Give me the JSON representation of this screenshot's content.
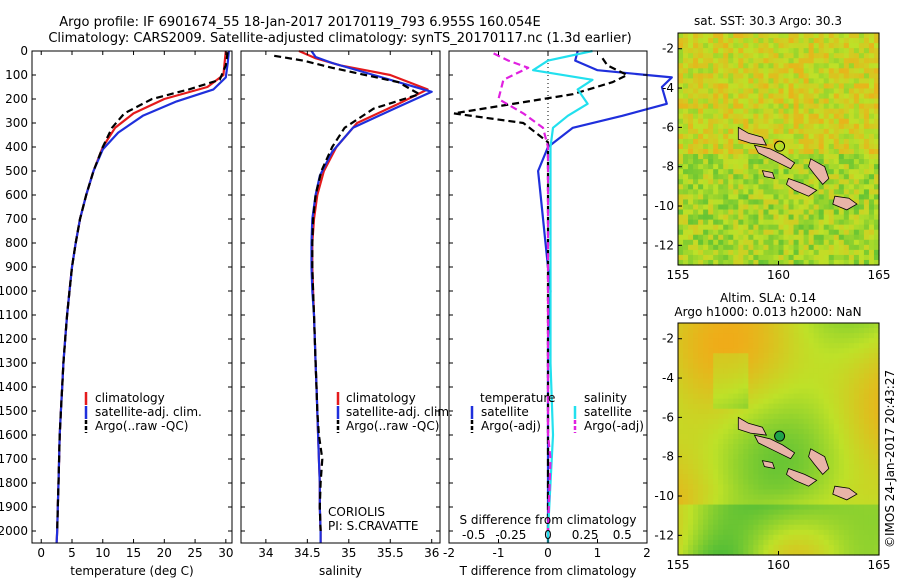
{
  "header": {
    "title_line1": "Argo profile: IF 6901674_55 18-Jan-2017 20170119_793 6.955S 160.054E",
    "title_line2": "Climatology: CARS2009. Satellite-adjusted climatology: synTS_20170117.nc (1.3d earlier)"
  },
  "watermark": "©IMOS 24-Jan-2017 20:43:27",
  "colors": {
    "climatology": "#e41a1c",
    "satellite": "#1f2fdc",
    "argo": "#000000",
    "sal_satellite": "#22e0ee",
    "sal_argo": "#e020e0",
    "land": "#e8b4a8",
    "argo_marker": "#1fa34a"
  },
  "chart_data": [
    {
      "id": "temperature",
      "type": "line",
      "xlabel": "temperature (deg C)",
      "ylabel": "",
      "xlim": [
        -1.5,
        31
      ],
      "ylim": [
        2050,
        0
      ],
      "xticks": [
        0,
        5,
        10,
        15,
        20,
        25,
        30
      ],
      "xtick_labels": [
        "0",
        "5",
        "10",
        "15",
        "20",
        "25",
        "30"
      ],
      "yticks": [
        0,
        100,
        200,
        300,
        400,
        500,
        600,
        700,
        800,
        900,
        1000,
        1100,
        1200,
        1300,
        1400,
        1500,
        1600,
        1700,
        1800,
        1900,
        2000
      ],
      "ytick_labels": [
        "0",
        "100",
        "200",
        "300",
        "400",
        "500",
        "600",
        "700",
        "800",
        "900",
        "1000",
        "1100",
        "1200",
        "1300",
        "1400",
        "1500",
        "1600",
        "1700",
        "1800",
        "1900",
        "2000"
      ],
      "legend": [
        "climatology",
        "satellite-adj. clim.",
        "Argo(..raw -QC)"
      ],
      "series": [
        {
          "name": "climatology",
          "color": "#e41a1c",
          "dash": false,
          "points": [
            [
              30,
              0
            ],
            [
              29.8,
              50
            ],
            [
              29.6,
              100
            ],
            [
              27,
              150
            ],
            [
              20,
              200
            ],
            [
              15,
              260
            ],
            [
              12,
              320
            ],
            [
              10,
              400
            ],
            [
              8.5,
              500
            ],
            [
              7.3,
              600
            ],
            [
              6.3,
              700
            ],
            [
              5.6,
              800
            ],
            [
              5,
              900
            ],
            [
              4.6,
              1000
            ],
            [
              4.2,
              1100
            ],
            [
              3.9,
              1200
            ],
            [
              3.6,
              1300
            ],
            [
              3.4,
              1400
            ],
            [
              3.2,
              1500
            ],
            [
              3,
              1600
            ],
            [
              2.9,
              1700
            ],
            [
              2.8,
              1800
            ],
            [
              2.7,
              1900
            ],
            [
              2.6,
              2000
            ],
            [
              2.5,
              2050
            ]
          ]
        },
        {
          "name": "satellite-adj. clim.",
          "color": "#1f2fdc",
          "dash": false,
          "points": [
            [
              30.5,
              0
            ],
            [
              30.3,
              50
            ],
            [
              30,
              110
            ],
            [
              28,
              160
            ],
            [
              22,
              210
            ],
            [
              16.5,
              270
            ],
            [
              12.5,
              340
            ],
            [
              10,
              410
            ],
            [
              8.5,
              500
            ],
            [
              7.3,
              600
            ],
            [
              6.3,
              700
            ],
            [
              5.6,
              800
            ],
            [
              5,
              900
            ],
            [
              4.6,
              1000
            ],
            [
              4.2,
              1100
            ],
            [
              3.9,
              1200
            ],
            [
              3.6,
              1300
            ],
            [
              3.4,
              1400
            ],
            [
              3.2,
              1500
            ],
            [
              3,
              1600
            ],
            [
              2.9,
              1700
            ],
            [
              2.8,
              1800
            ],
            [
              2.7,
              1900
            ],
            [
              2.6,
              2000
            ],
            [
              2.5,
              2050
            ]
          ]
        },
        {
          "name": "Argo(..raw -QC)",
          "color": "#000000",
          "dash": true,
          "points": [
            [
              30.3,
              5
            ],
            [
              30,
              60
            ],
            [
              29,
              120
            ],
            [
              24,
              160
            ],
            [
              18,
              200
            ],
            [
              13.5,
              260
            ],
            [
              11.5,
              320
            ],
            [
              10,
              400
            ],
            [
              8.5,
              500
            ],
            [
              7.3,
              600
            ],
            [
              6.3,
              700
            ],
            [
              5.6,
              800
            ],
            [
              5,
              900
            ],
            [
              4.6,
              1000
            ],
            [
              4.2,
              1100
            ],
            [
              3.9,
              1200
            ],
            [
              3.6,
              1300
            ],
            [
              3.4,
              1400
            ],
            [
              3.2,
              1500
            ],
            [
              3,
              1600
            ],
            [
              2.9,
              1700
            ],
            [
              2.8,
              1800
            ],
            [
              2.7,
              1900
            ],
            [
              2.6,
              2000
            ]
          ]
        }
      ]
    },
    {
      "id": "salinity",
      "type": "line",
      "xlabel": "salinity",
      "ylabel": "",
      "xlim": [
        33.7,
        36.1
      ],
      "ylim": [
        2050,
        0
      ],
      "xticks": [
        34,
        34.5,
        35,
        35.5,
        36
      ],
      "xtick_labels": [
        "34",
        "34.5",
        "35",
        "35.5",
        "36"
      ],
      "legend": [
        "climatology",
        "satellite-adj. clim.",
        "Argo(..raw -QC)"
      ],
      "annotation": [
        "CORIOLIS",
        "PI: S.CRAVATTE"
      ],
      "series": [
        {
          "name": "climatology",
          "color": "#e41a1c",
          "dash": false,
          "points": [
            [
              34.4,
              0
            ],
            [
              34.6,
              30
            ],
            [
              34.9,
              60
            ],
            [
              35.5,
              100
            ],
            [
              35.95,
              160
            ],
            [
              35.6,
              220
            ],
            [
              35.1,
              300
            ],
            [
              34.85,
              400
            ],
            [
              34.7,
              500
            ],
            [
              34.62,
              600
            ],
            [
              34.58,
              700
            ],
            [
              34.56,
              800
            ],
            [
              34.56,
              900
            ],
            [
              34.57,
              1000
            ],
            [
              34.58,
              1100
            ],
            [
              34.59,
              1200
            ],
            [
              34.6,
              1300
            ],
            [
              34.61,
              1400
            ],
            [
              34.62,
              1500
            ],
            [
              34.63,
              1600
            ],
            [
              34.64,
              1700
            ],
            [
              34.65,
              1800
            ],
            [
              34.65,
              1900
            ],
            [
              34.66,
              2000
            ],
            [
              34.66,
              2050
            ]
          ]
        },
        {
          "name": "satellite-adj. clim.",
          "color": "#1f2fdc",
          "dash": false,
          "points": [
            [
              34.55,
              0
            ],
            [
              34.6,
              25
            ],
            [
              34.8,
              50
            ],
            [
              35.3,
              100
            ],
            [
              36,
              170
            ],
            [
              35.55,
              240
            ],
            [
              35.05,
              320
            ],
            [
              34.8,
              420
            ],
            [
              34.65,
              520
            ],
            [
              34.6,
              600
            ],
            [
              34.56,
              700
            ],
            [
              34.55,
              800
            ],
            [
              34.55,
              900
            ],
            [
              34.56,
              1000
            ],
            [
              34.58,
              1100
            ],
            [
              34.59,
              1200
            ],
            [
              34.6,
              1300
            ],
            [
              34.61,
              1400
            ],
            [
              34.62,
              1500
            ],
            [
              34.63,
              1600
            ],
            [
              34.64,
              1700
            ],
            [
              34.65,
              1800
            ],
            [
              34.65,
              1900
            ],
            [
              34.66,
              2000
            ],
            [
              34.66,
              2050
            ]
          ]
        },
        {
          "name": "Argo(..raw -QC)",
          "color": "#000000",
          "dash": true,
          "points": [
            [
              34.1,
              20
            ],
            [
              34.45,
              40
            ],
            [
              34.8,
              70
            ],
            [
              35.6,
              130
            ],
            [
              35.85,
              180
            ],
            [
              35.3,
              240
            ],
            [
              34.95,
              320
            ],
            [
              34.8,
              400
            ],
            [
              34.67,
              500
            ],
            [
              34.6,
              600
            ],
            [
              34.57,
              700
            ],
            [
              34.56,
              800
            ],
            [
              34.56,
              900
            ],
            [
              34.57,
              1000
            ],
            [
              34.58,
              1100
            ],
            [
              34.59,
              1200
            ],
            [
              34.6,
              1300
            ],
            [
              34.61,
              1400
            ],
            [
              34.62,
              1500
            ],
            [
              34.64,
              1600
            ],
            [
              34.68,
              1700
            ],
            [
              34.66,
              1800
            ],
            [
              34.65,
              1900
            ],
            [
              34.66,
              2000
            ]
          ]
        }
      ]
    },
    {
      "id": "difference",
      "type": "line",
      "xlabel": "T difference from climatology",
      "xlabel_top": "S difference from climatology",
      "xlim": [
        -2,
        2
      ],
      "ylim": [
        2050,
        0
      ],
      "xticks": [
        -2,
        -1,
        0,
        1,
        2
      ],
      "xtick_labels": [
        "-2",
        "-1",
        "0",
        "1",
        "2"
      ],
      "sticks": [
        -1.5,
        -0.75,
        0,
        0.75,
        1.5
      ],
      "stick_labels": [
        "-0.5",
        "-0.25",
        "0",
        "0.25",
        "0.5"
      ],
      "legend_temperature_title": "temperature",
      "legend_salinity_title": "salinity",
      "legend_satellite": "satellite",
      "legend_argo": "Argo(-adj)",
      "series": [
        {
          "name": "T satellite",
          "color": "#1f2fdc",
          "dash": false,
          "points": [
            [
              0.6,
              0
            ],
            [
              0.55,
              40
            ],
            [
              1,
              80
            ],
            [
              2.5,
              110
            ],
            [
              2.3,
              150
            ],
            [
              2.4,
              220
            ],
            [
              1.5,
              270
            ],
            [
              0.5,
              320
            ],
            [
              0,
              400
            ],
            [
              -0.2,
              500
            ],
            [
              -0.15,
              600
            ],
            [
              -0.05,
              800
            ],
            [
              0.05,
              1000
            ],
            [
              0,
              1200
            ],
            [
              0,
              1500
            ],
            [
              0,
              1800
            ],
            [
              0,
              2000
            ],
            [
              0,
              2050
            ]
          ]
        },
        {
          "name": "T Argo(-adj)",
          "color": "#000000",
          "dash": true,
          "points": [
            [
              1.1,
              30
            ],
            [
              1.2,
              60
            ],
            [
              1.6,
              100
            ],
            [
              1.3,
              130
            ],
            [
              0.5,
              180
            ],
            [
              -1,
              230
            ],
            [
              -1.9,
              260
            ],
            [
              -0.5,
              300
            ],
            [
              0,
              380
            ],
            [
              0,
              2000
            ]
          ]
        },
        {
          "name": "S satellite",
          "color": "#22e0ee",
          "dash": false,
          "points": [
            [
              0.9,
              0
            ],
            [
              0,
              40
            ],
            [
              -0.3,
              80
            ],
            [
              0.9,
              120
            ],
            [
              0.6,
              160
            ],
            [
              0.8,
              220
            ],
            [
              0.4,
              270
            ],
            [
              0.1,
              320
            ],
            [
              0.05,
              400
            ],
            [
              0.05,
              700
            ],
            [
              0.05,
              1000
            ],
            [
              0.05,
              1300
            ],
            [
              0.1,
              1600
            ],
            [
              0.05,
              1800
            ],
            [
              0,
              2000
            ],
            [
              0,
              2050
            ]
          ]
        },
        {
          "name": "S Argo(-adj)",
          "color": "#e020e0",
          "dash": true,
          "points": [
            [
              -1.1,
              10
            ],
            [
              -0.8,
              40
            ],
            [
              -0.4,
              70
            ],
            [
              -0.9,
              120
            ],
            [
              -1,
              200
            ],
            [
              -0.5,
              260
            ],
            [
              -0.1,
              320
            ],
            [
              0,
              400
            ],
            [
              0,
              1600
            ],
            [
              0.05,
              1700
            ],
            [
              0,
              2000
            ]
          ]
        }
      ]
    },
    {
      "id": "sst_map",
      "type": "heatmap",
      "title": "sat. SST: 30.3 Argo: 30.3",
      "xlim": [
        155,
        165
      ],
      "ylim": [
        -13,
        -1.2
      ],
      "xticks": [
        155,
        160,
        165
      ],
      "xtick_labels": [
        "155",
        "160",
        "165"
      ],
      "yticks": [
        -2,
        -4,
        -6,
        -8,
        -10,
        -12
      ],
      "ytick_labels": [
        "-2",
        "-4",
        "-6",
        "-8",
        "-10",
        "-12"
      ],
      "argo_position": [
        160.054,
        -6.955
      ],
      "field_style": "noisy"
    },
    {
      "id": "sla_map",
      "type": "heatmap",
      "title_line1": "Altim. SLA: 0.14",
      "title_line2": "Argo h1000: 0.013 h2000: NaN",
      "xlim": [
        155,
        165
      ],
      "ylim": [
        -13,
        -1.2
      ],
      "xticks": [
        155,
        160,
        165
      ],
      "xtick_labels": [
        "155",
        "160",
        "165"
      ],
      "yticks": [
        -2,
        -4,
        -6,
        -8,
        -10,
        -12
      ],
      "ytick_labels": [
        "-2",
        "-4",
        "-6",
        "-8",
        "-10",
        "-12"
      ],
      "argo_position": [
        160.054,
        -6.955
      ],
      "field_style": "smooth"
    }
  ]
}
